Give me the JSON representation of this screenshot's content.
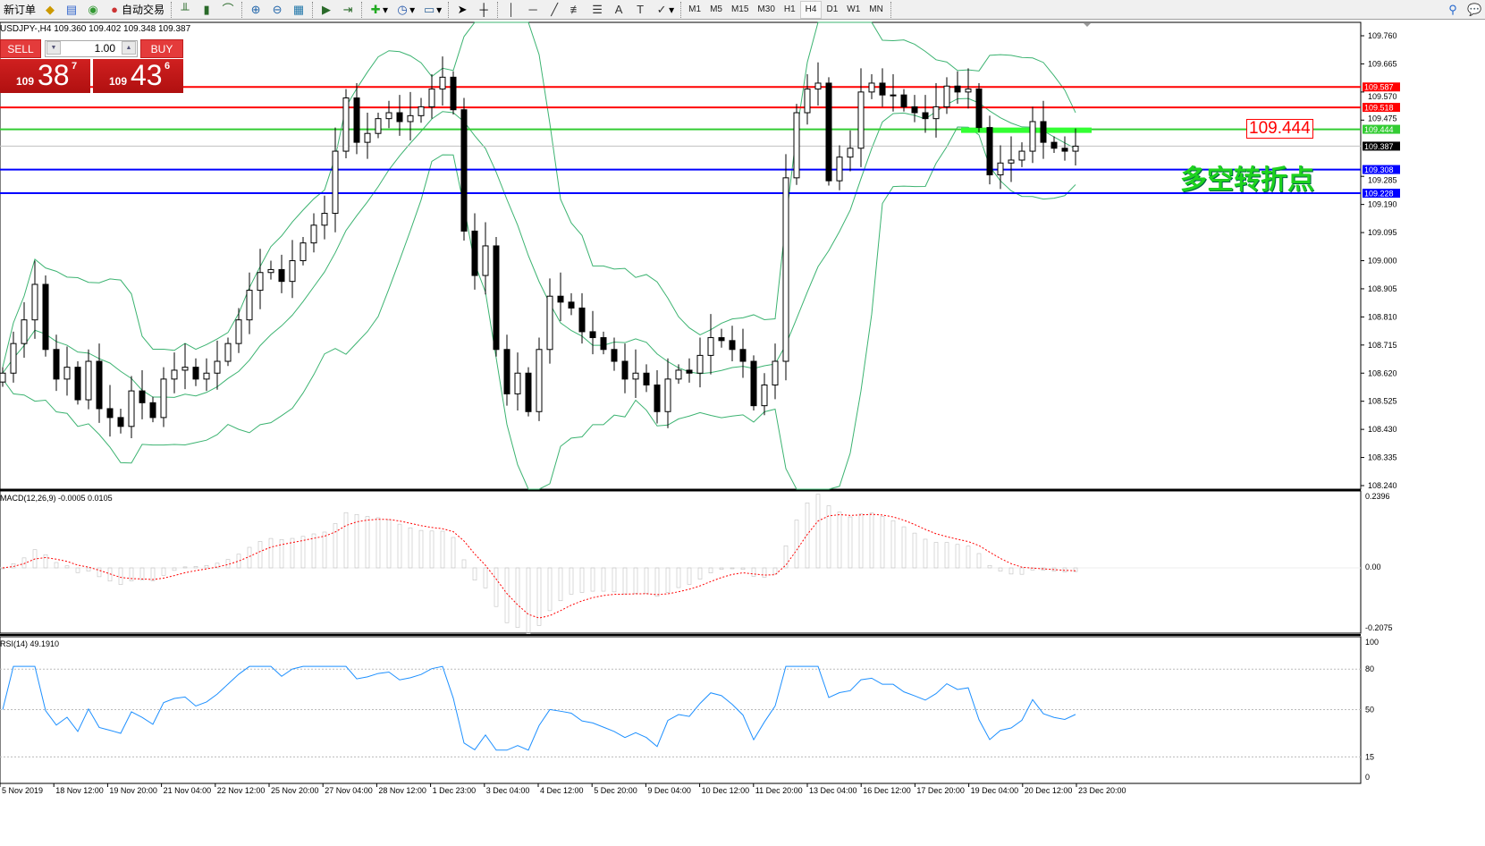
{
  "toolbar": {
    "new_order": "新订单",
    "auto_trade": "自动交易",
    "timeframes": [
      "M1",
      "M5",
      "M15",
      "M30",
      "H1",
      "H4",
      "D1",
      "W1",
      "MN"
    ],
    "active_timeframe": "H4"
  },
  "chart": {
    "title": "USDJPY-,H4  109.360 109.402 109.348 109.387",
    "symbol": "USDJPY-",
    "period": "H4",
    "price_ticks": [
      "109.760",
      "109.665",
      "109.570",
      "109.475",
      "109.285",
      "109.190",
      "109.095",
      "109.000",
      "108.905",
      "108.810",
      "108.715",
      "108.620",
      "108.525",
      "108.430",
      "108.335",
      "108.240"
    ],
    "price_range": [
      108.24,
      109.76
    ],
    "levels": [
      {
        "price": "109.587",
        "color": "#ff0000"
      },
      {
        "price": "109.518",
        "color": "#ff0000"
      },
      {
        "price": "109.444",
        "color": "#33cc33"
      },
      {
        "price": "109.387",
        "color": "#000000",
        "bid": true
      },
      {
        "price": "109.308",
        "color": "#0000ff"
      },
      {
        "price": "109.228",
        "color": "#0000ff"
      }
    ],
    "level_label": "109.444",
    "annotation": "多空转折点",
    "candle_color_up": "#ffffff",
    "candle_color_down": "#000000",
    "band_color": "#3cb371",
    "closes": [
      108.62,
      108.72,
      108.8,
      108.92,
      108.7,
      108.6,
      108.64,
      108.53,
      108.66,
      108.5,
      108.47,
      108.44,
      108.56,
      108.52,
      108.47,
      108.6,
      108.63,
      108.64,
      108.6,
      108.62,
      108.66,
      108.72,
      108.8,
      108.9,
      108.96,
      108.97,
      108.93,
      109.0,
      109.06,
      109.12,
      109.16,
      109.37,
      109.55,
      109.4,
      109.43,
      109.48,
      109.5,
      109.47,
      109.49,
      109.52,
      109.58,
      109.62,
      109.51,
      109.1,
      108.95,
      109.05,
      108.7,
      108.55,
      108.62,
      108.49,
      108.7,
      108.88,
      108.86,
      108.84,
      108.76,
      108.74,
      108.7,
      108.66,
      108.6,
      108.62,
      108.58,
      108.49,
      108.6,
      108.63,
      108.62,
      108.68,
      108.74,
      108.73,
      108.7,
      108.66,
      108.51,
      108.58,
      108.66,
      109.28,
      109.5,
      109.58,
      109.6,
      109.27,
      109.35,
      109.38,
      109.57,
      109.6,
      109.56,
      109.56,
      109.52,
      109.5,
      109.48,
      109.52,
      109.59,
      109.57,
      109.58,
      109.45,
      109.29,
      109.33,
      109.34,
      109.37,
      109.47,
      109.4,
      109.38,
      109.37,
      109.387
    ]
  },
  "trade": {
    "sell": "SELL",
    "buy": "BUY",
    "lots": "1.00",
    "sell_small": "109",
    "sell_big": "38",
    "sell_pip": "7",
    "buy_small": "109",
    "buy_big": "43",
    "buy_pip": "6"
  },
  "macd": {
    "label": "MACD(12,26,9) -0.0005 0.0105",
    "ticks": [
      "0.2396",
      "0.00",
      "-0.2075"
    ],
    "range": [
      -0.2075,
      0.2396
    ],
    "hist_color": "#c0c0c0",
    "signal_color": "#ff0000"
  },
  "rsi": {
    "label": "RSI(14) 49.1910",
    "ticks": [
      "100",
      "80",
      "50",
      "15",
      "0"
    ],
    "levels": [
      80,
      50,
      15
    ],
    "color": "#1e90ff"
  },
  "time_axis": [
    "5 Nov 2019",
    "18 Nov 12:00",
    "19 Nov 20:00",
    "21 Nov 04:00",
    "22 Nov 12:00",
    "25 Nov 20:00",
    "27 Nov 04:00",
    "28 Nov 12:00",
    "1 Dec 23:00",
    "3 Dec 04:00",
    "4 Dec 12:00",
    "5 Dec 20:00",
    "9 Dec 04:00",
    "10 Dec 12:00",
    "11 Dec 20:00",
    "13 Dec 04:00",
    "16 Dec 12:00",
    "17 Dec 20:00",
    "19 Dec 04:00",
    "20 Dec 12:00",
    "23 Dec 20:00"
  ]
}
